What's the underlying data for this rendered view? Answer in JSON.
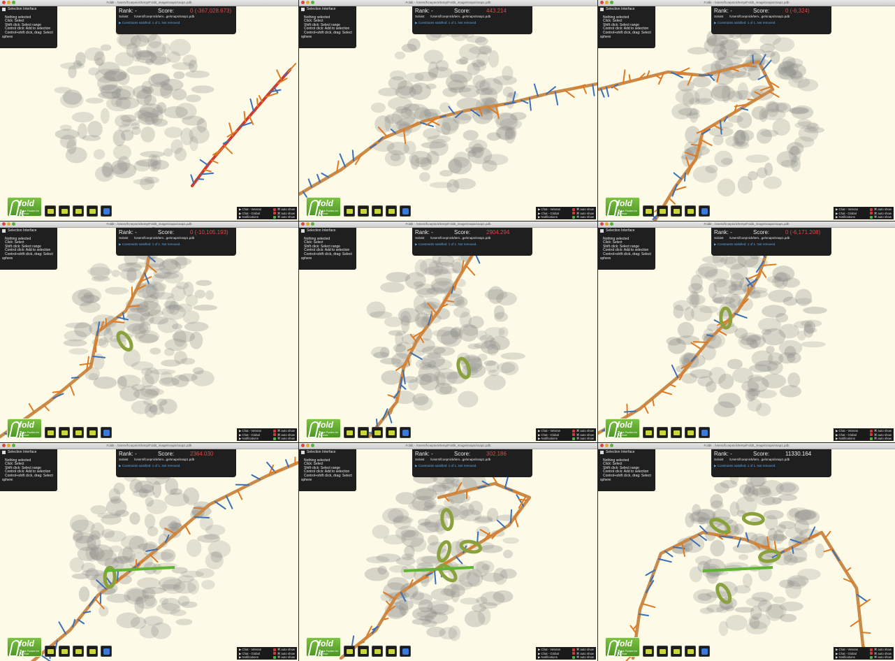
{
  "window_title": "Foldit - /Users/fcoepnick/temp/Foldit_image/snaps/snap1.pdb",
  "selection": {
    "header": "Selection Interface",
    "lines": [
      "Nothing selected",
      "Click: Select",
      "Shift click: Select range",
      "Control click: Add to selection",
      "Control+shift click, drag: Select"
    ],
    "last": "sphere"
  },
  "score": {
    "rank_label": "Rank: -",
    "score_label": "Score:",
    "solo_label": "Soloist",
    "path": "/Users/fcoepnick/tem...ge/snaps/snap1.pdb",
    "constraints": "Constraints satisfied: 1 of 1. Not removed."
  },
  "logo": {
    "text": "fold it",
    "tagline": "Solve Puzzles for Science"
  },
  "chat": {
    "items": [
      {
        "label": "▶ Chat - Veteran",
        "auto": "⌘ auto show",
        "on": false
      },
      {
        "label": "▶ Chat - Global",
        "auto": "⌘ auto show",
        "on": false
      },
      {
        "label": "▶ Notifications",
        "auto": "⌘ auto show",
        "on": true
      }
    ]
  },
  "panels": [
    {
      "id": 1,
      "score": "0 (-367,028.673)",
      "negative": true
    },
    {
      "id": 2,
      "score": "443.214",
      "negative": true
    },
    {
      "id": 3,
      "score": "0 (-6,324)",
      "negative": true
    },
    {
      "id": 4,
      "score": "0 (-10,105.193)",
      "negative": true
    },
    {
      "id": 5,
      "score": "2904.294",
      "negative": true
    },
    {
      "id": 6,
      "score": "0 (-6,171.208)",
      "negative": true
    },
    {
      "id": 7,
      "score": "2364.030",
      "negative": true
    },
    {
      "id": 8,
      "score": "302.186",
      "negative": true
    },
    {
      "id": 9,
      "score": "11330.164",
      "negative": false
    }
  ],
  "colors": {
    "background": "#fdfbe8",
    "density": "#8a8a88",
    "backbone": "#c98a4a",
    "sidechain_orange": "#e07a20",
    "sidechain_blue": "#3b6fb6",
    "helix": "#8aa23e",
    "strand": "#5fb532",
    "clash": "#d9302c"
  }
}
